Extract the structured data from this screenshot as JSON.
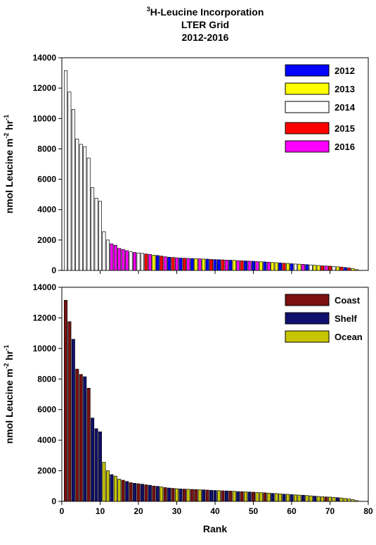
{
  "title": {
    "line1_sup": "3",
    "line1_main": "H-Leucine Incorporation",
    "line2": "LTER Grid",
    "line3": "2012-2016"
  },
  "chart_data": [
    {
      "type": "bar",
      "panel": "top",
      "xlabel": "",
      "ylabel_main": "nmol Leucine m",
      "ylabel_sup1": "-2",
      "ylabel_mid": " hr",
      "ylabel_sup2": "-1",
      "ylim": [
        0,
        14000
      ],
      "yticks": [
        0,
        2000,
        4000,
        6000,
        8000,
        10000,
        12000,
        14000
      ],
      "xlim": [
        0,
        80
      ],
      "xticks": [],
      "grid": false,
      "legend_position": "top-right",
      "legend": [
        {
          "label": "2012",
          "color": "#0000ff"
        },
        {
          "label": "2013",
          "color": "#ffff00"
        },
        {
          "label": "2014",
          "color": "#ffffff"
        },
        {
          "label": "2015",
          "color": "#ff0000"
        },
        {
          "label": "2016",
          "color": "#ff00ff"
        }
      ],
      "rank": [
        1,
        2,
        3,
        4,
        5,
        6,
        7,
        8,
        9,
        10,
        11,
        12,
        13,
        14,
        15,
        16,
        17,
        18,
        19,
        20,
        21,
        22,
        23,
        24,
        25,
        26,
        27,
        28,
        29,
        30,
        31,
        32,
        33,
        34,
        35,
        36,
        37,
        38,
        39,
        40,
        41,
        42,
        43,
        44,
        45,
        46,
        47,
        48,
        49,
        50,
        51,
        52,
        53,
        54,
        55,
        56,
        57,
        58,
        59,
        60,
        61,
        62,
        63,
        64,
        65,
        66,
        67,
        68,
        69,
        70,
        71,
        72,
        73,
        74,
        75,
        76,
        77
      ],
      "values": [
        13150,
        11750,
        10600,
        8650,
        8300,
        8150,
        7400,
        5450,
        4750,
        4550,
        2550,
        2000,
        1750,
        1650,
        1450,
        1380,
        1300,
        1220,
        1180,
        1150,
        1120,
        1080,
        1050,
        1000,
        980,
        940,
        900,
        870,
        850,
        830,
        810,
        800,
        790,
        780,
        770,
        760,
        750,
        740,
        720,
        710,
        700,
        690,
        680,
        670,
        660,
        640,
        630,
        620,
        610,
        600,
        580,
        570,
        560,
        540,
        520,
        510,
        490,
        470,
        460,
        440,
        420,
        410,
        400,
        380,
        360,
        340,
        320,
        300,
        290,
        280,
        260,
        240,
        220,
        190,
        160,
        110,
        50
      ],
      "year": [
        "2014",
        "2014",
        "2014",
        "2014",
        "2014",
        "2014",
        "2014",
        "2014",
        "2014",
        "2014",
        "2014",
        "2014",
        "2016",
        "2016",
        "2016",
        "2016",
        "2016",
        "2014",
        "2016",
        "2014",
        "2014",
        "2015",
        "2016",
        "2013",
        "2012",
        "2015",
        "2016",
        "2012",
        "2015",
        "2016",
        "2012",
        "2015",
        "2016",
        "2012",
        "2013",
        "2016",
        "2013",
        "2012",
        "2015",
        "2012",
        "2012",
        "2015",
        "2016",
        "2012",
        "2013",
        "2016",
        "2015",
        "2012",
        "2016",
        "2012",
        "2016",
        "2013",
        "2012",
        "2016",
        "2013",
        "2013",
        "2012",
        "2015",
        "2013",
        "2012",
        "2014",
        "2013",
        "2016",
        "2012",
        "2014",
        "2013",
        "2013",
        "2015",
        "2016",
        "2015",
        "2014",
        "2013",
        "2015",
        "2012",
        "2015",
        "2013",
        "2013"
      ]
    },
    {
      "type": "bar",
      "panel": "bottom",
      "xlabel": "Rank",
      "ylabel_main": "nmol Leucine m",
      "ylabel_sup1": "-2",
      "ylabel_mid": " hr",
      "ylabel_sup2": "-1",
      "ylim": [
        0,
        14000
      ],
      "yticks": [
        0,
        2000,
        4000,
        6000,
        8000,
        10000,
        12000,
        14000
      ],
      "xlim": [
        0,
        80
      ],
      "xticks": [
        0,
        10,
        20,
        30,
        40,
        50,
        60,
        70,
        80
      ],
      "grid": false,
      "legend_position": "top-right",
      "legend": [
        {
          "label": "Coast",
          "color": "#7a1010"
        },
        {
          "label": "Shelf",
          "color": "#10106e"
        },
        {
          "label": "Ocean",
          "color": "#c8c400"
        }
      ],
      "rank": [
        1,
        2,
        3,
        4,
        5,
        6,
        7,
        8,
        9,
        10,
        11,
        12,
        13,
        14,
        15,
        16,
        17,
        18,
        19,
        20,
        21,
        22,
        23,
        24,
        25,
        26,
        27,
        28,
        29,
        30,
        31,
        32,
        33,
        34,
        35,
        36,
        37,
        38,
        39,
        40,
        41,
        42,
        43,
        44,
        45,
        46,
        47,
        48,
        49,
        50,
        51,
        52,
        53,
        54,
        55,
        56,
        57,
        58,
        59,
        60,
        61,
        62,
        63,
        64,
        65,
        66,
        67,
        68,
        69,
        70,
        71,
        72,
        73,
        74,
        75,
        76,
        77
      ],
      "values": [
        13150,
        11750,
        10600,
        8650,
        8300,
        8150,
        7400,
        5450,
        4750,
        4550,
        2550,
        2000,
        1750,
        1650,
        1450,
        1380,
        1300,
        1220,
        1180,
        1150,
        1120,
        1080,
        1050,
        1000,
        980,
        940,
        900,
        870,
        850,
        830,
        810,
        800,
        790,
        780,
        770,
        760,
        750,
        740,
        720,
        710,
        700,
        690,
        680,
        670,
        660,
        640,
        630,
        620,
        610,
        600,
        580,
        570,
        560,
        540,
        520,
        510,
        490,
        470,
        460,
        440,
        420,
        410,
        400,
        380,
        360,
        340,
        320,
        300,
        290,
        280,
        260,
        240,
        220,
        190,
        160,
        110,
        50
      ],
      "region": [
        "Coast",
        "Coast",
        "Shelf",
        "Coast",
        "Coast",
        "Shelf",
        "Coast",
        "Shelf",
        "Shelf",
        "Shelf",
        "Ocean",
        "Ocean",
        "Shelf",
        "Ocean",
        "Ocean",
        "Coast",
        "Shelf",
        "Coast",
        "Shelf",
        "Coast",
        "Shelf",
        "Coast",
        "Shelf",
        "Coast",
        "Shelf",
        "Ocean",
        "Coast",
        "Shelf",
        "Coast",
        "Ocean",
        "Shelf",
        "Coast",
        "Ocean",
        "Coast",
        "Coast",
        "Ocean",
        "Shelf",
        "Coast",
        "Shelf",
        "Shelf",
        "Ocean",
        "Coast",
        "Shelf",
        "Coast",
        "Ocean",
        "Shelf",
        "Coast",
        "Ocean",
        "Shelf",
        "Coast",
        "Ocean",
        "Ocean",
        "Coast",
        "Ocean",
        "Shelf",
        "Ocean",
        "Ocean",
        "Shelf",
        "Ocean",
        "Shelf",
        "Ocean",
        "Ocean",
        "Shelf",
        "Ocean",
        "Ocean",
        "Shelf",
        "Ocean",
        "Ocean",
        "Coast",
        "Ocean",
        "Ocean",
        "Shelf",
        "Ocean",
        "Ocean",
        "Ocean",
        "Ocean",
        "Ocean"
      ]
    }
  ]
}
